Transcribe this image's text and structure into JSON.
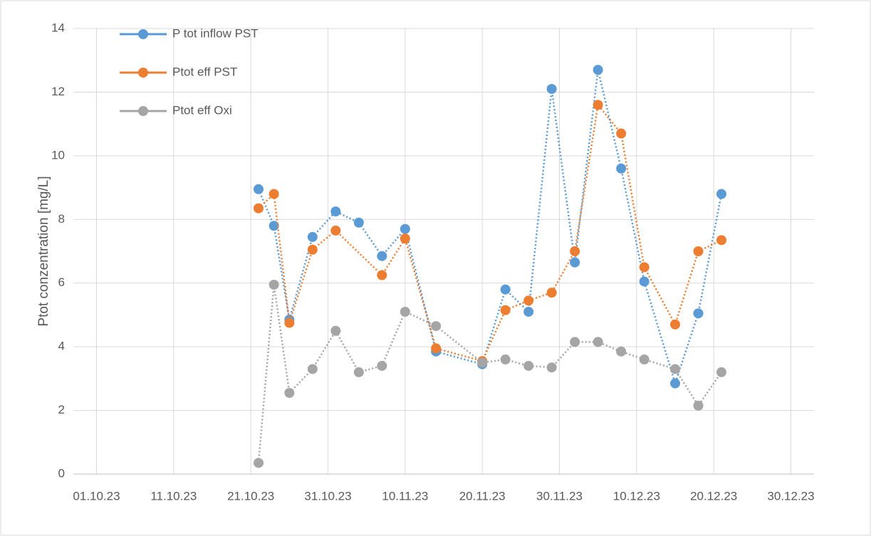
{
  "chart_data": {
    "type": "line",
    "y_label": "Ptot conzentration [mg/L]",
    "xlim": [
      "28.09.23",
      "02.01.24"
    ],
    "xticks": [
      "01.10.23",
      "11.10.23",
      "21.10.23",
      "31.10.23",
      "10.11.23",
      "20.11.23",
      "30.11.23",
      "10.12.23",
      "20.12.23",
      "30.12.23"
    ],
    "ylim": [
      0,
      14
    ],
    "yticks": [
      0,
      2,
      4,
      6,
      8,
      10,
      12,
      14
    ],
    "grid": true,
    "legend": "top-left",
    "series": [
      {
        "name": "P tot inflow PST",
        "color": "#5b9bd5",
        "x": [
          "22.10.23",
          "24.10.23",
          "26.10.23",
          "29.10.23",
          "01.11.23",
          "04.11.23",
          "07.11.23",
          "10.11.23",
          "14.11.23",
          "20.11.23",
          "23.11.23",
          "26.11.23",
          "29.11.23",
          "02.12.23",
          "05.12.23",
          "08.12.23",
          "11.12.23",
          "15.12.23",
          "18.12.23",
          "21.12.23"
        ],
        "values": [
          8.95,
          7.8,
          4.85,
          7.45,
          8.25,
          7.9,
          6.85,
          7.7,
          3.85,
          3.45,
          5.8,
          5.1,
          12.1,
          6.65,
          12.7,
          9.6,
          6.05,
          2.85,
          5.05,
          8.8
        ]
      },
      {
        "name": "Ptot eff PST",
        "color": "#ed7d31",
        "x": [
          "22.10.23",
          "24.10.23",
          "26.10.23",
          "29.10.23",
          "01.11.23",
          "07.11.23",
          "10.11.23",
          "14.11.23",
          "20.11.23",
          "23.11.23",
          "26.11.23",
          "29.11.23",
          "02.12.23",
          "05.12.23",
          "08.12.23",
          "11.12.23",
          "15.12.23",
          "18.12.23",
          "21.12.23"
        ],
        "values": [
          8.35,
          8.8,
          4.75,
          7.05,
          7.65,
          6.25,
          7.4,
          3.95,
          3.55,
          5.15,
          5.45,
          5.7,
          7.0,
          11.6,
          10.7,
          6.5,
          4.7,
          7.0,
          7.35
        ]
      },
      {
        "name": "Ptot eff Oxi",
        "color": "#a5a5a5",
        "x": [
          "22.10.23",
          "24.10.23",
          "26.10.23",
          "29.10.23",
          "01.11.23",
          "04.11.23",
          "07.11.23",
          "10.11.23",
          "14.11.23",
          "20.11.23",
          "23.11.23",
          "26.11.23",
          "29.11.23",
          "02.12.23",
          "05.12.23",
          "08.12.23",
          "11.12.23",
          "15.12.23",
          "18.12.23",
          "21.12.23"
        ],
        "values": [
          0.35,
          5.95,
          2.55,
          3.3,
          4.5,
          3.2,
          3.4,
          5.1,
          4.65,
          3.5,
          3.6,
          3.4,
          3.35,
          4.15,
          4.15,
          3.85,
          3.6,
          3.3,
          2.15,
          3.2
        ]
      }
    ]
  }
}
